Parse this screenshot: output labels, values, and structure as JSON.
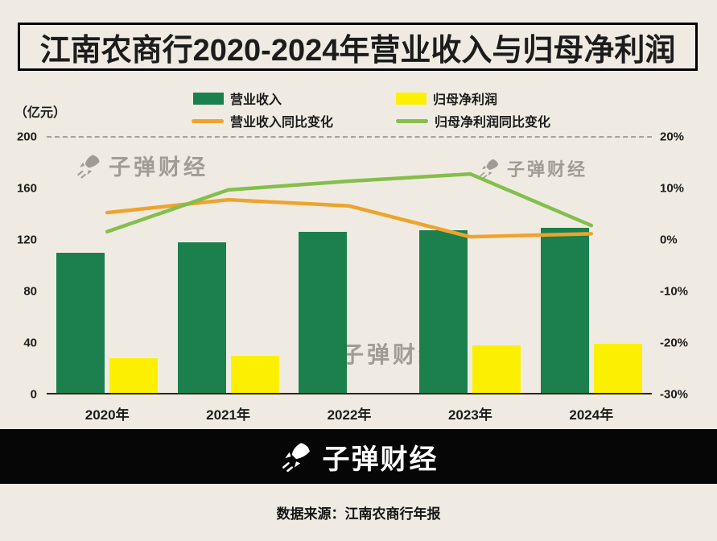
{
  "title": "江南农商行2020-2024年营业收入与归母净利润",
  "unit_label": "（亿元）",
  "watermark_text": "子弹财经",
  "footer_logo_text": "子弹财经",
  "source_text": "数据来源：江南农商行年报",
  "colors": {
    "background": "#EFEBE2",
    "revenue_bar": "#1B7F4E",
    "profit_bar": "#FCF000",
    "revenue_line": "#EFA32C",
    "profit_line": "#84BE4C",
    "axis_line": "#33251A",
    "footer_bg": "#060606"
  },
  "legend": {
    "items": [
      {
        "label": "营业收入",
        "swatch": "bar",
        "color": "#1B7F4E"
      },
      {
        "label": "归母净利润",
        "swatch": "bar",
        "color": "#FCF000"
      },
      {
        "label": "营业收入同比变化",
        "swatch": "line",
        "color": "#EFA32C"
      },
      {
        "label": "归母净利润同比变化",
        "swatch": "line",
        "color": "#84BE4C"
      }
    ]
  },
  "chart_data": {
    "type": "bar+line",
    "title": "江南农商行2020-2024年营业收入与归母净利润",
    "categories": [
      "2020年",
      "2021年",
      "2022年",
      "2023年",
      "2024年"
    ],
    "series": [
      {
        "name": "营业收入",
        "type": "bar",
        "axis": "left",
        "color": "#1B7F4E",
        "values": [
          109,
          117,
          125,
          126,
          128
        ]
      },
      {
        "name": "归母净利润",
        "type": "bar",
        "axis": "left",
        "color": "#FCF000",
        "values": [
          27,
          29,
          null,
          37,
          38
        ]
      },
      {
        "name": "营业收入同比变化",
        "type": "line",
        "axis": "right",
        "color": "#EFA32C",
        "values_pct": [
          5.3,
          7.8,
          6.6,
          0.6,
          1.2
        ]
      },
      {
        "name": "归母净利润同比变化",
        "type": "line",
        "axis": "right",
        "color": "#84BE4C",
        "values_pct": [
          1.6,
          9.7,
          11.4,
          12.8,
          2.8
        ]
      }
    ],
    "left_axis": {
      "label": "（亿元）",
      "ticks": [
        0,
        40,
        80,
        120,
        160,
        200
      ],
      "min": 0,
      "max": 200
    },
    "right_axis": {
      "ticks": [
        "20%",
        "10%",
        "0%",
        "-10%",
        "-20%",
        "-30%"
      ],
      "min": -30,
      "max": 20
    },
    "grid": "top dashed line only",
    "legend_position": "top"
  }
}
